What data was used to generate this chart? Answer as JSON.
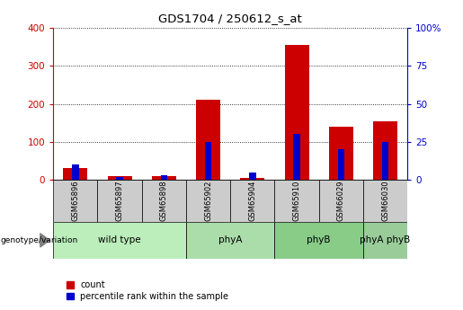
{
  "title": "GDS1704 / 250612_s_at",
  "samples": [
    "GSM65896",
    "GSM65897",
    "GSM65898",
    "GSM65902",
    "GSM65904",
    "GSM65910",
    "GSM66029",
    "GSM66030"
  ],
  "groups": [
    {
      "label": "wild type",
      "indices": [
        0,
        1,
        2
      ],
      "color": "#bbeebb"
    },
    {
      "label": "phyA",
      "indices": [
        3,
        4
      ],
      "color": "#aaddaa"
    },
    {
      "label": "phyB",
      "indices": [
        5,
        6
      ],
      "color": "#88cc88"
    },
    {
      "label": "phyA phyB",
      "indices": [
        7
      ],
      "color": "#99cc99"
    }
  ],
  "counts": [
    30,
    10,
    10,
    210,
    5,
    355,
    140,
    155
  ],
  "percentiles": [
    10,
    2,
    3,
    25,
    5,
    30,
    20,
    25
  ],
  "left_ylim": [
    0,
    400
  ],
  "right_ylim": [
    0,
    100
  ],
  "left_yticks": [
    0,
    100,
    200,
    300,
    400
  ],
  "right_yticks": [
    0,
    25,
    50,
    75,
    100
  ],
  "count_color": "#cc0000",
  "percentile_color": "#0000cc",
  "bg_sample_header": "#cccccc",
  "legend_count": "count",
  "legend_percentile": "percentile rank within the sample",
  "xlabel_genotype": "genotype/variation"
}
